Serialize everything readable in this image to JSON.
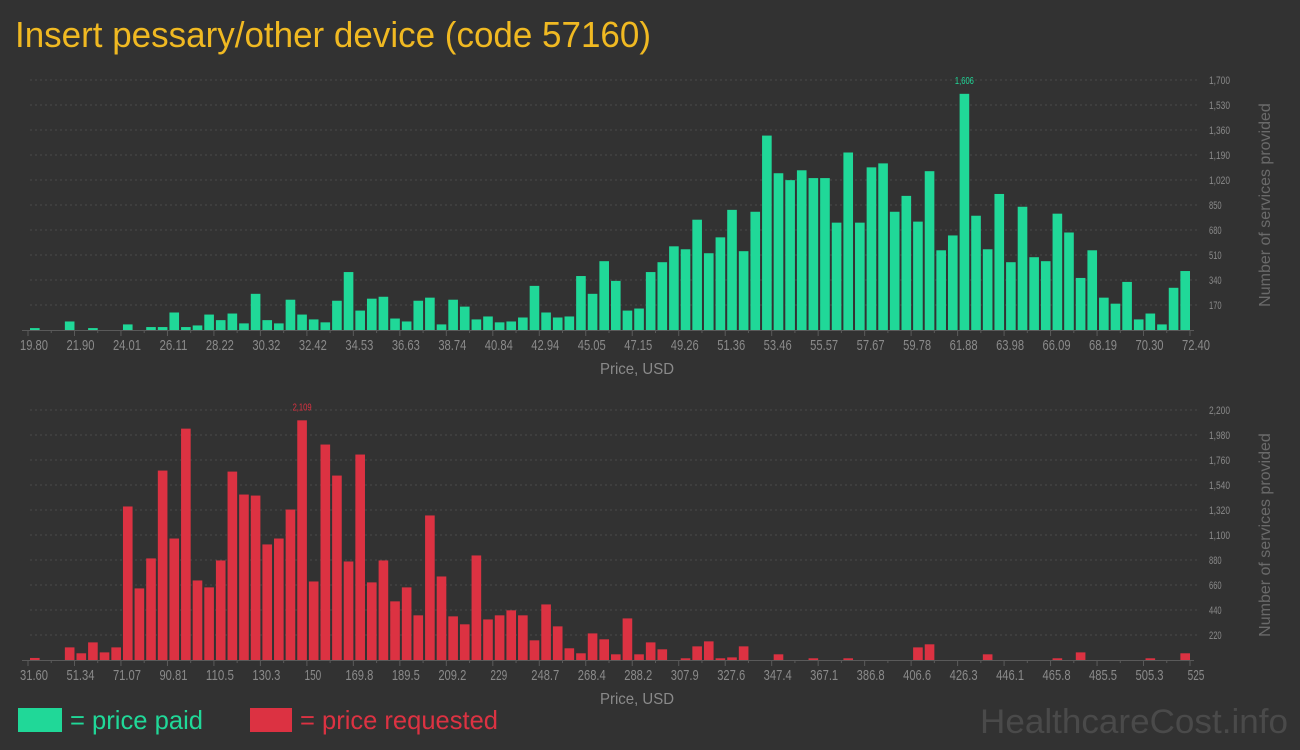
{
  "title": "Insert pessary/other device (code 57160)",
  "colors": {
    "background": "#323232",
    "title": "#f0b922",
    "paid": "#20d898",
    "requested": "#dc3242",
    "watermark": "#4a4a4a"
  },
  "legend": {
    "paid": "= price paid",
    "requested": "= price requested"
  },
  "watermark": "HealthcareCost.info",
  "chart_data": [
    {
      "type": "bar",
      "name": "price paid",
      "xlabel": "Price, USD",
      "ylabel": "Number of services provided",
      "ylim": [
        0,
        1700
      ],
      "yticks": [
        "170",
        "340",
        "510",
        "680",
        "850",
        "1,020",
        "1,190",
        "1,360",
        "1,530",
        "1,700"
      ],
      "ytick_values": [
        170,
        340,
        510,
        680,
        850,
        1020,
        1190,
        1360,
        1530,
        1700
      ],
      "xticks": [
        "19.80",
        "21.90",
        "24.01",
        "26.11",
        "28.22",
        "30.32",
        "32.42",
        "34.53",
        "36.63",
        "38.74",
        "40.84",
        "42.94",
        "45.05",
        "47.15",
        "49.26",
        "51.36",
        "53.46",
        "55.57",
        "57.67",
        "59.78",
        "61.88",
        "63.98",
        "66.09",
        "68.19",
        "70.30",
        "72.40"
      ],
      "max_label": "1,606",
      "grid": true,
      "values": [
        13,
        0,
        0,
        58,
        0,
        13,
        0,
        0,
        38,
        0,
        20,
        20,
        119,
        20,
        31,
        105,
        67,
        112,
        45,
        246,
        67,
        45,
        206,
        105,
        72,
        52,
        199,
        394,
        132,
        213,
        226,
        78,
        58,
        199,
        220,
        38,
        206,
        159,
        72,
        92,
        52,
        58,
        85,
        300,
        119,
        85,
        92,
        367,
        246,
        468,
        334,
        132,
        146,
        394,
        461,
        569,
        549,
        750,
        522,
        630,
        817,
        536,
        804,
        1322,
        1066,
        1019,
        1086,
        1033,
        1033,
        730,
        1207,
        730,
        1106,
        1133,
        804,
        912,
        737,
        1080,
        542,
        643,
        1606,
        777,
        549,
        925,
        461,
        838,
        495,
        468,
        791,
        663,
        354,
        542,
        220,
        179,
        327,
        72,
        112,
        38,
        287,
        401
      ]
    },
    {
      "type": "bar",
      "name": "price requested",
      "xlabel": "Price, USD",
      "ylabel": "Number of services provided",
      "ylim": [
        0,
        2200
      ],
      "yticks": [
        "220",
        "440",
        "660",
        "880",
        "1,100",
        "1,320",
        "1,540",
        "1,760",
        "1,980",
        "2,200"
      ],
      "ytick_values": [
        220,
        440,
        660,
        880,
        1100,
        1320,
        1540,
        1760,
        1980,
        2200
      ],
      "xticks": [
        "31.60",
        "51.34",
        "71.07",
        "90.81",
        "110.5",
        "130.3",
        "150",
        "169.8",
        "189.5",
        "209.2",
        "229",
        "248.7",
        "268.4",
        "288.2",
        "307.9",
        "327.6",
        "347.4",
        "367.1",
        "386.8",
        "406.6",
        "426.3",
        "446.1",
        "465.8",
        "485.5",
        "505.3",
        "525"
      ],
      "max_label": "2,109",
      "grid": true,
      "values": [
        18,
        0,
        0,
        111,
        59,
        155,
        67,
        111,
        1351,
        630,
        894,
        1667,
        1069,
        2036,
        700,
        639,
        876,
        1658,
        1456,
        1447,
        1017,
        1069,
        1324,
        2109,
        691,
        1896,
        1623,
        867,
        1808,
        683,
        876,
        516,
        639,
        393,
        1272,
        735,
        384,
        314,
        920,
        357,
        393,
        437,
        393,
        173,
        489,
        296,
        103,
        59,
        234,
        182,
        50,
        366,
        50,
        155,
        94,
        0,
        15,
        120,
        164,
        15,
        23,
        120,
        0,
        0,
        50,
        0,
        0,
        15,
        0,
        0,
        15,
        0,
        0,
        0,
        0,
        0,
        111,
        138,
        0,
        0,
        0,
        0,
        50,
        0,
        0,
        0,
        0,
        0,
        15,
        0,
        67,
        0,
        0,
        0,
        0,
        0,
        15,
        0,
        0,
        59
      ]
    }
  ]
}
